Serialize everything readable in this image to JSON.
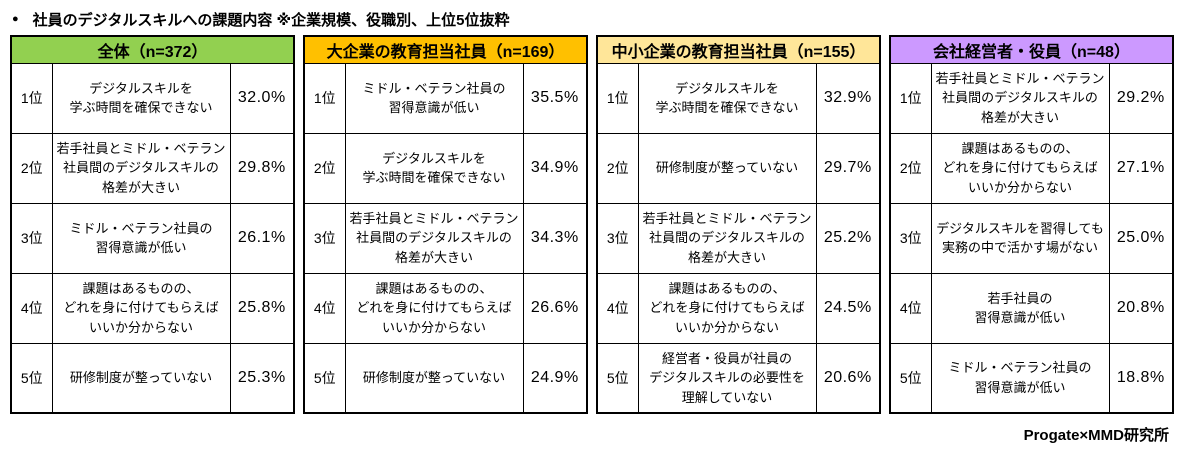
{
  "title": {
    "bullet": "●",
    "text": "社員のデジタルスキルへの課題内容 ※企業規模、役職別、上位5位抜粋"
  },
  "footer": {
    "credit": "Progate×MMD研究所"
  },
  "chart_data": {
    "type": "table",
    "title": "社員のデジタルスキルへの課題内容 ※企業規模、役職別、上位5位抜粋",
    "groups": [
      {
        "header": "全体（n=372）",
        "n": 372,
        "header_color": "#92D050",
        "rows": [
          {
            "rank": "1位",
            "label": "デジタルスキルを\n学ぶ時間を確保できない",
            "value_pct": 32.0,
            "value": "32.0%"
          },
          {
            "rank": "2位",
            "label": "若手社員とミドル・ベテラン\n社員間のデジタルスキルの\n格差が大きい",
            "value_pct": 29.8,
            "value": "29.8%"
          },
          {
            "rank": "3位",
            "label": "ミドル・ベテラン社員の\n習得意識が低い",
            "value_pct": 26.1,
            "value": "26.1%"
          },
          {
            "rank": "4位",
            "label": "課題はあるものの、\nどれを身に付けてもらえば\nいいか分からない",
            "value_pct": 25.8,
            "value": "25.8%"
          },
          {
            "rank": "5位",
            "label": "研修制度が整っていない",
            "value_pct": 25.3,
            "value": "25.3%"
          }
        ]
      },
      {
        "header": "大企業の教育担当社員（n=169）",
        "n": 169,
        "header_color": "#FFC000",
        "rows": [
          {
            "rank": "1位",
            "label": "ミドル・ベテラン社員の\n習得意識が低い",
            "value_pct": 35.5,
            "value": "35.5%"
          },
          {
            "rank": "2位",
            "label": "デジタルスキルを\n学ぶ時間を確保できない",
            "value_pct": 34.9,
            "value": "34.9%"
          },
          {
            "rank": "3位",
            "label": "若手社員とミドル・ベテラン\n社員間のデジタルスキルの\n格差が大きい",
            "value_pct": 34.3,
            "value": "34.3%"
          },
          {
            "rank": "4位",
            "label": "課題はあるものの、\nどれを身に付けてもらえば\nいいか分からない",
            "value_pct": 26.6,
            "value": "26.6%"
          },
          {
            "rank": "5位",
            "label": "研修制度が整っていない",
            "value_pct": 24.9,
            "value": "24.9%"
          }
        ]
      },
      {
        "header": "中小企業の教育担当社員（n=155）",
        "n": 155,
        "header_color": "#FFE699",
        "rows": [
          {
            "rank": "1位",
            "label": "デジタルスキルを\n学ぶ時間を確保できない",
            "value_pct": 32.9,
            "value": "32.9%"
          },
          {
            "rank": "2位",
            "label": "研修制度が整っていない",
            "value_pct": 29.7,
            "value": "29.7%"
          },
          {
            "rank": "3位",
            "label": "若手社員とミドル・ベテラン\n社員間のデジタルスキルの\n格差が大きい",
            "value_pct": 25.2,
            "value": "25.2%"
          },
          {
            "rank": "4位",
            "label": "課題はあるものの、\nどれを身に付けてもらえば\nいいか分からない",
            "value_pct": 24.5,
            "value": "24.5%"
          },
          {
            "rank": "5位",
            "label": "経営者・役員が社員の\nデジタルスキルの必要性を\n理解していない",
            "value_pct": 20.6,
            "value": "20.6%"
          }
        ]
      },
      {
        "header": "会社経営者・役員（n=48）",
        "n": 48,
        "header_color": "#CC99FF",
        "rows": [
          {
            "rank": "1位",
            "label": "若手社員とミドル・ベテラン\n社員間のデジタルスキルの\n格差が大きい",
            "value_pct": 29.2,
            "value": "29.2%"
          },
          {
            "rank": "2位",
            "label": "課題はあるものの、\nどれを身に付けてもらえば\nいいか分からない",
            "value_pct": 27.1,
            "value": "27.1%"
          },
          {
            "rank": "3位",
            "label": "デジタルスキルを習得しても\n実務の中で活かす場がない",
            "value_pct": 25.0,
            "value": "25.0%"
          },
          {
            "rank": "4位",
            "label": "若手社員の\n習得意識が低い",
            "value_pct": 20.8,
            "value": "20.8%"
          },
          {
            "rank": "5位",
            "label": "ミドル・ベテラン社員の\n習得意識が低い",
            "value_pct": 18.8,
            "value": "18.8%"
          }
        ]
      }
    ]
  }
}
